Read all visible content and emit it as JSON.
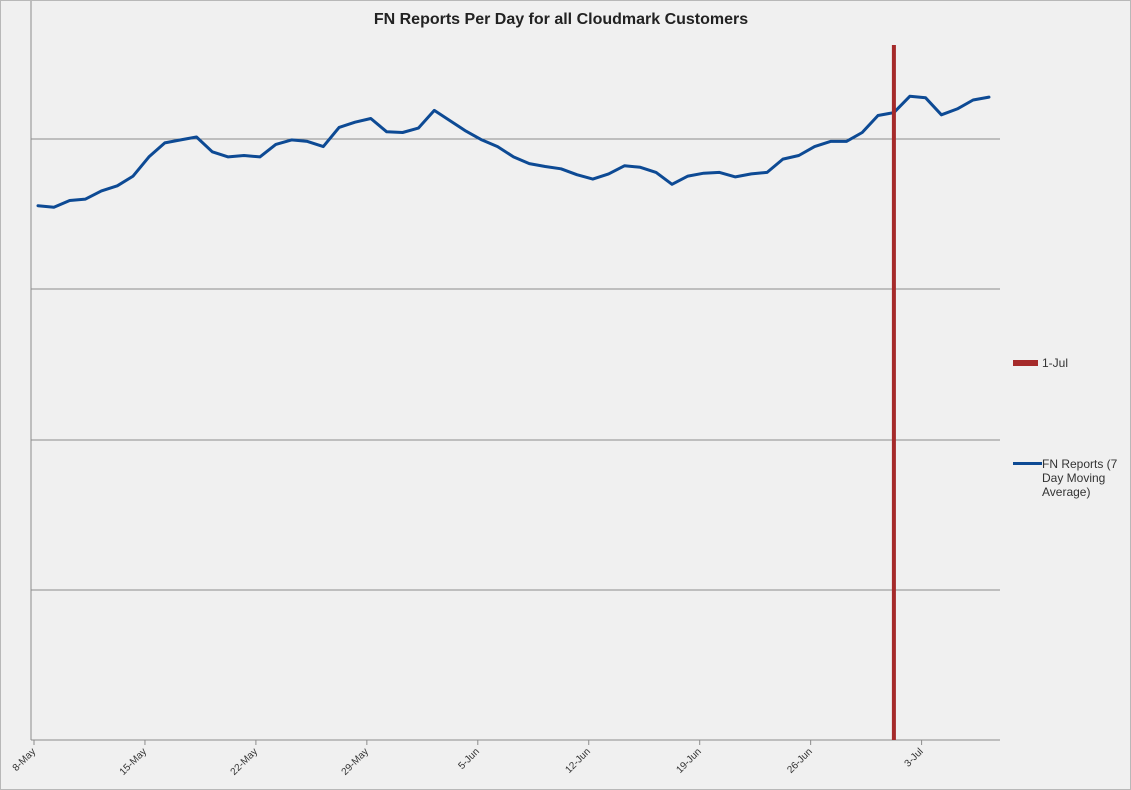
{
  "chart_data": {
    "type": "line",
    "title": "FN Reports Per Day for all Cloudmark Customers",
    "xlabel": "",
    "ylabel": "",
    "x_tick_labels": [
      "8-May",
      "15-May",
      "22-May",
      "29-May",
      "5-Jun",
      "12-Jun",
      "19-Jun",
      "26-Jun",
      "3-Jul"
    ],
    "x_start": "8-May",
    "y_axis_labels_shown": false,
    "ylim": [
      0,
      100
    ],
    "grid": "horizontal",
    "legend_position": "right",
    "series": [
      {
        "name": "FN Reports (7 Day Moving Average)",
        "color": "#0d4a94",
        "values": [
          72.3,
          72.1,
          73.0,
          73.2,
          74.3,
          75.0,
          76.3,
          78.9,
          80.8,
          81.2,
          81.6,
          79.6,
          78.9,
          79.1,
          78.9,
          80.6,
          81.2,
          81.0,
          80.3,
          82.9,
          83.6,
          84.1,
          82.3,
          82.2,
          82.8,
          85.2,
          83.8,
          82.4,
          81.2,
          80.3,
          78.9,
          78.0,
          77.6,
          77.3,
          76.5,
          75.9,
          76.6,
          77.7,
          77.5,
          76.8,
          75.2,
          76.3,
          76.7,
          76.8,
          76.2,
          76.6,
          76.8,
          78.6,
          79.1,
          80.3,
          81.0,
          81.0,
          82.2,
          84.5,
          84.9,
          87.1,
          86.9,
          84.6,
          85.4,
          86.6,
          87.0
        ]
      },
      {
        "name": "1-Jul",
        "color": "#a52a2a",
        "marker_date": "1-Jul"
      }
    ]
  },
  "legend": {
    "jul1_label": "1-Jul",
    "fn_label": "FN Reports (7 Day Moving Average)"
  }
}
